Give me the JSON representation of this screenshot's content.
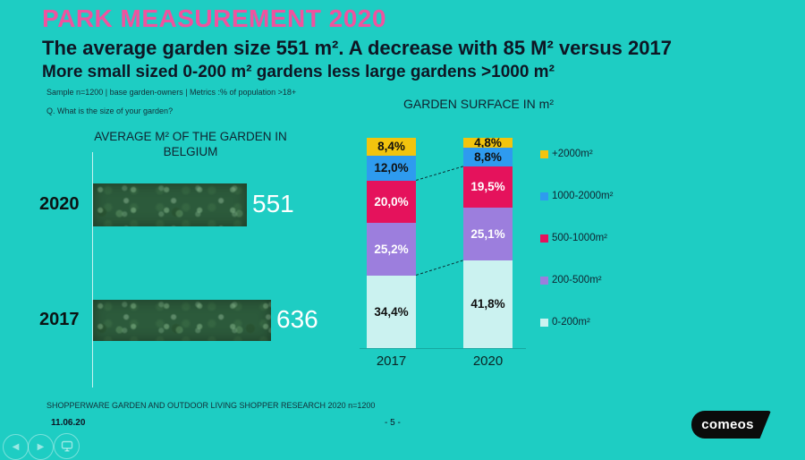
{
  "slide": {
    "title": "PARK MEASUREMENT 2020",
    "subtitle1": "The average garden size 551 m². A decrease with 85 M² versus 2017",
    "subtitle2": "More small sized 0-200 m² gardens less large gardens >1000 m²",
    "sample_note": "Sample n=1200  | base garden-owners  | Metrics :% of population >18+",
    "question": "Q.  What is the size of your garden?",
    "footer_source": "SHOPPERWARE GARDEN AND OUTDOOR LIVING SHOPPER RESEARCH 2020  n=1200",
    "date": "11.06.20",
    "page_number": "- 5 -",
    "logo_text": "comeos"
  },
  "colors": {
    "background": "#1ECDC3",
    "title_accent": "#EF539F",
    "text_dark": "#0E1624",
    "value_text": "#FFFFFF",
    "bar_texture_green": "#2C5A3B",
    "logo_background": "#0B0B0B"
  },
  "chart_data": [
    {
      "type": "bar",
      "orientation": "horizontal",
      "title": "AVERAGE M² OF THE GARDEN IN BELGIUM",
      "categories": [
        "2020",
        "2017"
      ],
      "values": [
        551,
        636
      ],
      "value_labels": [
        "551",
        "636"
      ],
      "unit": "m²",
      "bar_style": "green-marble-texture",
      "legend": "none"
    },
    {
      "type": "bar",
      "stacked": true,
      "title": "GARDEN SURFACE IN m²",
      "categories": [
        "2017",
        "2020"
      ],
      "series": [
        {
          "name": "+2000m²",
          "color": "#F2C40E",
          "label_color": "#101010",
          "values": [
            8.4,
            4.8
          ],
          "labels": [
            "8,4%",
            "4,8%"
          ]
        },
        {
          "name": "1000-2000m²",
          "color": "#2E9BEF",
          "label_color": "#101010",
          "values": [
            12.0,
            8.8
          ],
          "labels": [
            "12,0%",
            "8,8%"
          ]
        },
        {
          "name": "500-1000m²",
          "color": "#E5125C",
          "label_color": "#FFFFFF",
          "values": [
            20.0,
            19.5
          ],
          "labels": [
            "20,0%",
            "19,5%"
          ]
        },
        {
          "name": "200-500m²",
          "color": "#9C7EDD",
          "label_color": "#FFFFFF",
          "values": [
            25.2,
            25.1
          ],
          "labels": [
            "25,2%",
            "25,1%"
          ]
        },
        {
          "name": "0-200m²",
          "color": "#CBF2F0",
          "label_color": "#101010",
          "values": [
            34.4,
            41.8
          ],
          "labels": [
            "34,4%",
            "41,8%"
          ]
        }
      ],
      "ylim": [
        0,
        100
      ],
      "legend_position": "right",
      "annotations": "dashed connector lines between the tops of the 500-1000m² and 0-200m² segments across years"
    }
  ],
  "nav": {
    "prev": "previous-slide",
    "next": "next-slide",
    "present": "presentation-mode"
  }
}
